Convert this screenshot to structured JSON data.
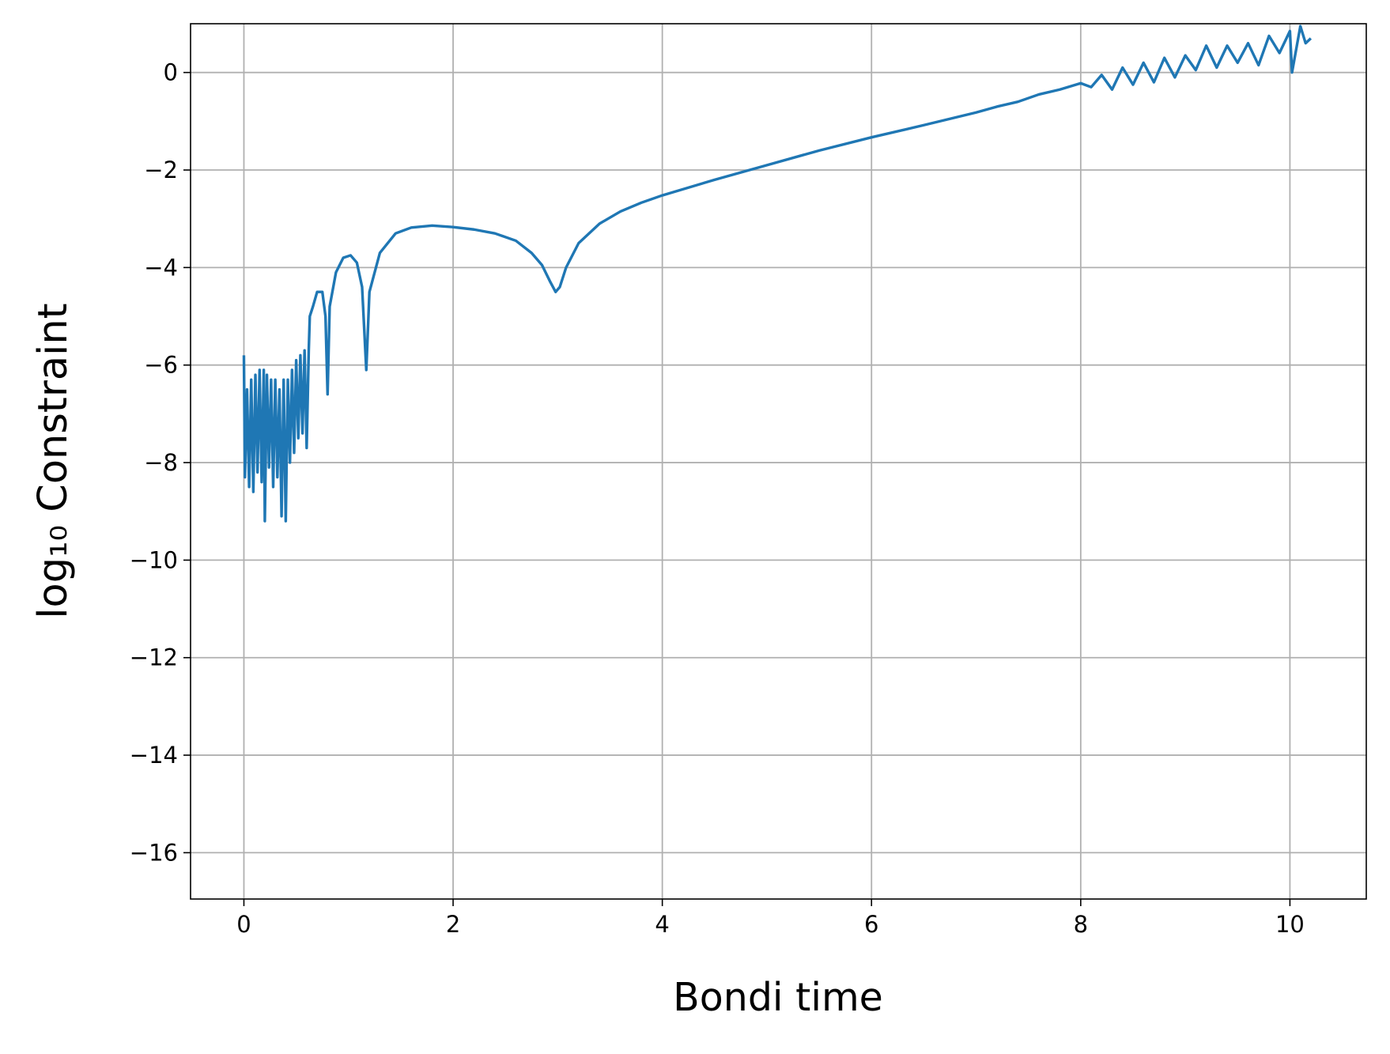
{
  "chart_data": {
    "type": "line",
    "xlabel": "Bondi time",
    "ylabel": "log₁₀ Constraint",
    "xlim": [
      -0.51,
      10.73
    ],
    "ylim": [
      -16.95,
      1.0
    ],
    "xticks": [
      0,
      2,
      4,
      6,
      8,
      10
    ],
    "yticks": [
      {
        "value": 0,
        "label": "0"
      },
      {
        "value": -2,
        "label": "−2"
      },
      {
        "value": -4,
        "label": "−4"
      },
      {
        "value": -6,
        "label": "−6"
      },
      {
        "value": -8,
        "label": "−8"
      },
      {
        "value": -10,
        "label": "−10"
      },
      {
        "value": -12,
        "label": "−12"
      },
      {
        "value": -14,
        "label": "−14"
      },
      {
        "value": -16,
        "label": "−16"
      }
    ],
    "grid": true,
    "series": [
      {
        "color": "#1f77b4",
        "x": [
          0,
          0.01,
          0.03,
          0.05,
          0.07,
          0.09,
          0.11,
          0.13,
          0.15,
          0.17,
          0.19,
          0.2,
          0.22,
          0.24,
          0.26,
          0.28,
          0.3,
          0.32,
          0.34,
          0.36,
          0.38,
          0.4,
          0.42,
          0.44,
          0.46,
          0.48,
          0.5,
          0.52,
          0.54,
          0.56,
          0.58,
          0.6,
          0.62,
          0.63,
          0.66,
          0.7,
          0.75,
          0.78,
          0.8,
          0.82,
          0.88,
          0.95,
          1.02,
          1.08,
          1.13,
          1.17,
          1.2,
          1.3,
          1.45,
          1.6,
          1.8,
          2.0,
          2.2,
          2.4,
          2.6,
          2.75,
          2.85,
          2.93,
          2.98,
          3.02,
          3.08,
          3.2,
          3.4,
          3.6,
          3.8,
          4.0,
          4.5,
          5.0,
          5.5,
          6.0,
          6.5,
          7.0,
          7.2,
          7.4,
          7.6,
          7.8,
          8.0,
          8.1,
          8.2,
          8.3,
          8.4,
          8.5,
          8.6,
          8.7,
          8.8,
          8.9,
          9.0,
          9.1,
          9.2,
          9.3,
          9.4,
          9.5,
          9.6,
          9.7,
          9.8,
          9.9,
          10.0,
          10.02,
          10.1,
          10.15,
          10.2
        ],
        "values": [
          -5.8,
          -8.3,
          -6.5,
          -8.5,
          -6.3,
          -8.6,
          -6.2,
          -8.2,
          -6.1,
          -8.4,
          -6.1,
          -9.2,
          -6.2,
          -8.1,
          -6.3,
          -8.5,
          -6.3,
          -8.3,
          -6.5,
          -9.1,
          -6.3,
          -9.2,
          -6.3,
          -8.0,
          -6.1,
          -7.8,
          -5.9,
          -7.5,
          -5.8,
          -7.4,
          -5.7,
          -7.7,
          -5.7,
          -5.0,
          -4.8,
          -4.5,
          -4.5,
          -5.0,
          -6.6,
          -4.8,
          -4.1,
          -3.8,
          -3.75,
          -3.9,
          -4.4,
          -6.1,
          -4.5,
          -3.7,
          -3.3,
          -3.18,
          -3.14,
          -3.17,
          -3.22,
          -3.3,
          -3.45,
          -3.7,
          -3.95,
          -4.3,
          -4.5,
          -4.4,
          -4.0,
          -3.5,
          -3.1,
          -2.85,
          -2.67,
          -2.52,
          -2.2,
          -1.9,
          -1.6,
          -1.33,
          -1.08,
          -0.82,
          -0.7,
          -0.6,
          -0.45,
          -0.35,
          -0.22,
          -0.3,
          -0.05,
          -0.35,
          0.1,
          -0.25,
          0.2,
          -0.2,
          0.3,
          -0.1,
          0.35,
          0.05,
          0.55,
          0.1,
          0.55,
          0.2,
          0.6,
          0.15,
          0.75,
          0.4,
          0.85,
          0.0,
          0.95,
          0.6,
          0.7
        ]
      }
    ]
  }
}
